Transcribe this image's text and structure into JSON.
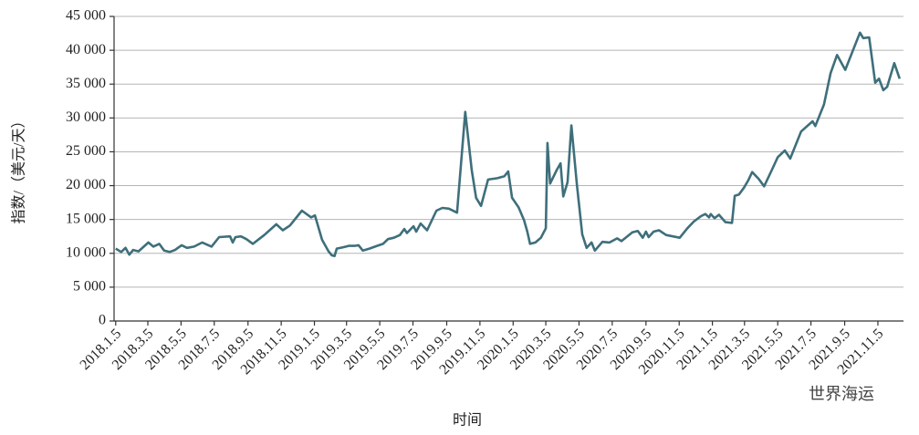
{
  "chart_data": {
    "type": "line",
    "ylabel": "指数/（美元/天）",
    "xlabel": "时间",
    "watermark": "世界海运",
    "color": "#3e6f7b",
    "grid": true,
    "xlim": [
      "2018.1.2",
      "2021.12.22"
    ],
    "xticks": [
      "2018.1.5",
      "2018.3.5",
      "2018.5.5",
      "2018.7.5",
      "2018.9.5",
      "2018.11.5",
      "2019.1.5",
      "2019.3.5",
      "2019.5.5",
      "2019.7.5",
      "2019.9.5",
      "2019.11.5",
      "2020.1.5",
      "2020.3.5",
      "2020.5.5",
      "2020.7.5",
      "2020.9.5",
      "2020.11.5",
      "2021.1.5",
      "2021.3.5",
      "2021.5.5",
      "2021.7.5",
      "2021.9.5",
      "2021.11.5"
    ],
    "ylim": [
      0,
      45000
    ],
    "yticks": [
      0,
      {
        "value": 5000,
        "label": "5 000"
      },
      {
        "value": 10000,
        "label": "10 000"
      },
      {
        "value": 15000,
        "label": "15 000"
      },
      {
        "value": 20000,
        "label": "20 000"
      },
      {
        "value": 25000,
        "label": "25 000"
      },
      {
        "value": 30000,
        "label": "30 000"
      },
      {
        "value": 35000,
        "label": "35 000"
      },
      {
        "value": 40000,
        "label": "40 000"
      },
      {
        "value": 45000,
        "label": "45 000"
      }
    ],
    "x": [
      "2018.1.5",
      "2018.1.15",
      "2018.1.23",
      "2018.1.30",
      "2018.2.6",
      "2018.2.16",
      "2018.3.6",
      "2018.3.15",
      "2018.3.26",
      "2018.4.4",
      "2018.4.14",
      "2018.4.24",
      "2018.5.6",
      "2018.5.16",
      "2018.5.29",
      "2018.6.13",
      "2018.6.30",
      "2018.7.14",
      "2018.8.3",
      "2018.8.8",
      "2018.8.13",
      "2018.8.23",
      "2018.9.2",
      "2018.9.14",
      "2018.10.5",
      "2018.10.27",
      "2018.11.8",
      "2018.11.21",
      "2018.12.13",
      "2018.12.30",
      "2019.1.6",
      "2019.1.19",
      "2019.1.31",
      "2019.2.6",
      "2019.2.11",
      "2019.2.15",
      "2019.2.27",
      "2019.3.9",
      "2019.3.20",
      "2019.3.27",
      "2019.4.4",
      "2019.4.16",
      "2019.4.30",
      "2019.5.11",
      "2019.5.20",
      "2019.5.31",
      "2019.6.11",
      "2019.6.19",
      "2019.6.24",
      "2019.7.6",
      "2019.7.11",
      "2019.7.19",
      "2019.7.31",
      "2019.8.17",
      "2019.8.28",
      "2019.9.9",
      "2019.9.24",
      "2019.10.9",
      "2019.10.21",
      "2019.10.29",
      "2019.11.7",
      "2019.11.20",
      "2019.12.7",
      "2019.12.20",
      "2019.12.27",
      "2020.1.3",
      "2020.1.15",
      "2020.1.25",
      "2020.1.31",
      "2020.2.5",
      "2020.2.15",
      "2020.2.25",
      "2020.3.5",
      "2020.3.8",
      "2020.3.13",
      "2020.3.25",
      "2020.4.1",
      "2020.4.6",
      "2020.4.14",
      "2020.4.21",
      "2020.5.1",
      "2020.5.11",
      "2020.5.19",
      "2020.5.28",
      "2020.6.3",
      "2020.6.17",
      "2020.6.30",
      "2020.7.14",
      "2020.7.22",
      "2020.8.11",
      "2020.8.21",
      "2020.8.30",
      "2020.9.5",
      "2020.9.10",
      "2020.9.19",
      "2020.9.29",
      "2020.10.12",
      "2020.11.6",
      "2020.11.20",
      "2020.12.2",
      "2020.12.15",
      "2020.12.23",
      "2020.12.30",
      "2021.1.2",
      "2021.1.9",
      "2021.1.17",
      "2021.1.29",
      "2021.2.10",
      "2021.2.15",
      "2021.2.23",
      "2021.3.4",
      "2021.3.12",
      "2021.3.19",
      "2021.3.31",
      "2021.4.10",
      "2021.4.23",
      "2021.5.5",
      "2021.5.18",
      "2021.5.28",
      "2021.6.17",
      "2021.7.8",
      "2021.7.13",
      "2021.7.29",
      "2021.8.10",
      "2021.8.22",
      "2021.9.6",
      "2021.10.3",
      "2021.10.9",
      "2021.10.20",
      "2021.10.31",
      "2021.11.7",
      "2021.11.15",
      "2021.11.22",
      "2021.12.5",
      "2021.12.15"
    ],
    "values": [
      10700,
      10200,
      10800,
      9800,
      10500,
      10300,
      11600,
      11000,
      11400,
      10400,
      10200,
      10500,
      11200,
      10800,
      11000,
      11600,
      11000,
      12400,
      12500,
      11600,
      12400,
      12500,
      12100,
      11400,
      12700,
      14300,
      13400,
      14100,
      16300,
      15300,
      15600,
      12000,
      10300,
      9700,
      9600,
      10700,
      10900,
      11100,
      11100,
      11200,
      10400,
      10700,
      11100,
      11400,
      12100,
      12300,
      12700,
      13600,
      13000,
      14000,
      13200,
      14400,
      13400,
      16300,
      16700,
      16600,
      16000,
      30900,
      22300,
      18200,
      17000,
      20900,
      21100,
      21400,
      22100,
      18200,
      16800,
      14900,
      13200,
      11400,
      11600,
      12300,
      13700,
      26300,
      20300,
      22300,
      23300,
      18400,
      20500,
      28900,
      20200,
      12800,
      10800,
      11600,
      10400,
      11700,
      11600,
      12200,
      11800,
      13100,
      13300,
      12300,
      13200,
      12400,
      13200,
      13400,
      12700,
      12300,
      13700,
      14700,
      15500,
      15800,
      15300,
      15800,
      15200,
      15700,
      14600,
      14500,
      18500,
      18700,
      19700,
      20800,
      22000,
      21000,
      19900,
      22100,
      24200,
      25200,
      24000,
      28000,
      29500,
      28800,
      32000,
      36600,
      39300,
      37100,
      42600,
      41800,
      41900,
      35200,
      35800,
      34100,
      34600,
      38100,
      35800
    ]
  }
}
